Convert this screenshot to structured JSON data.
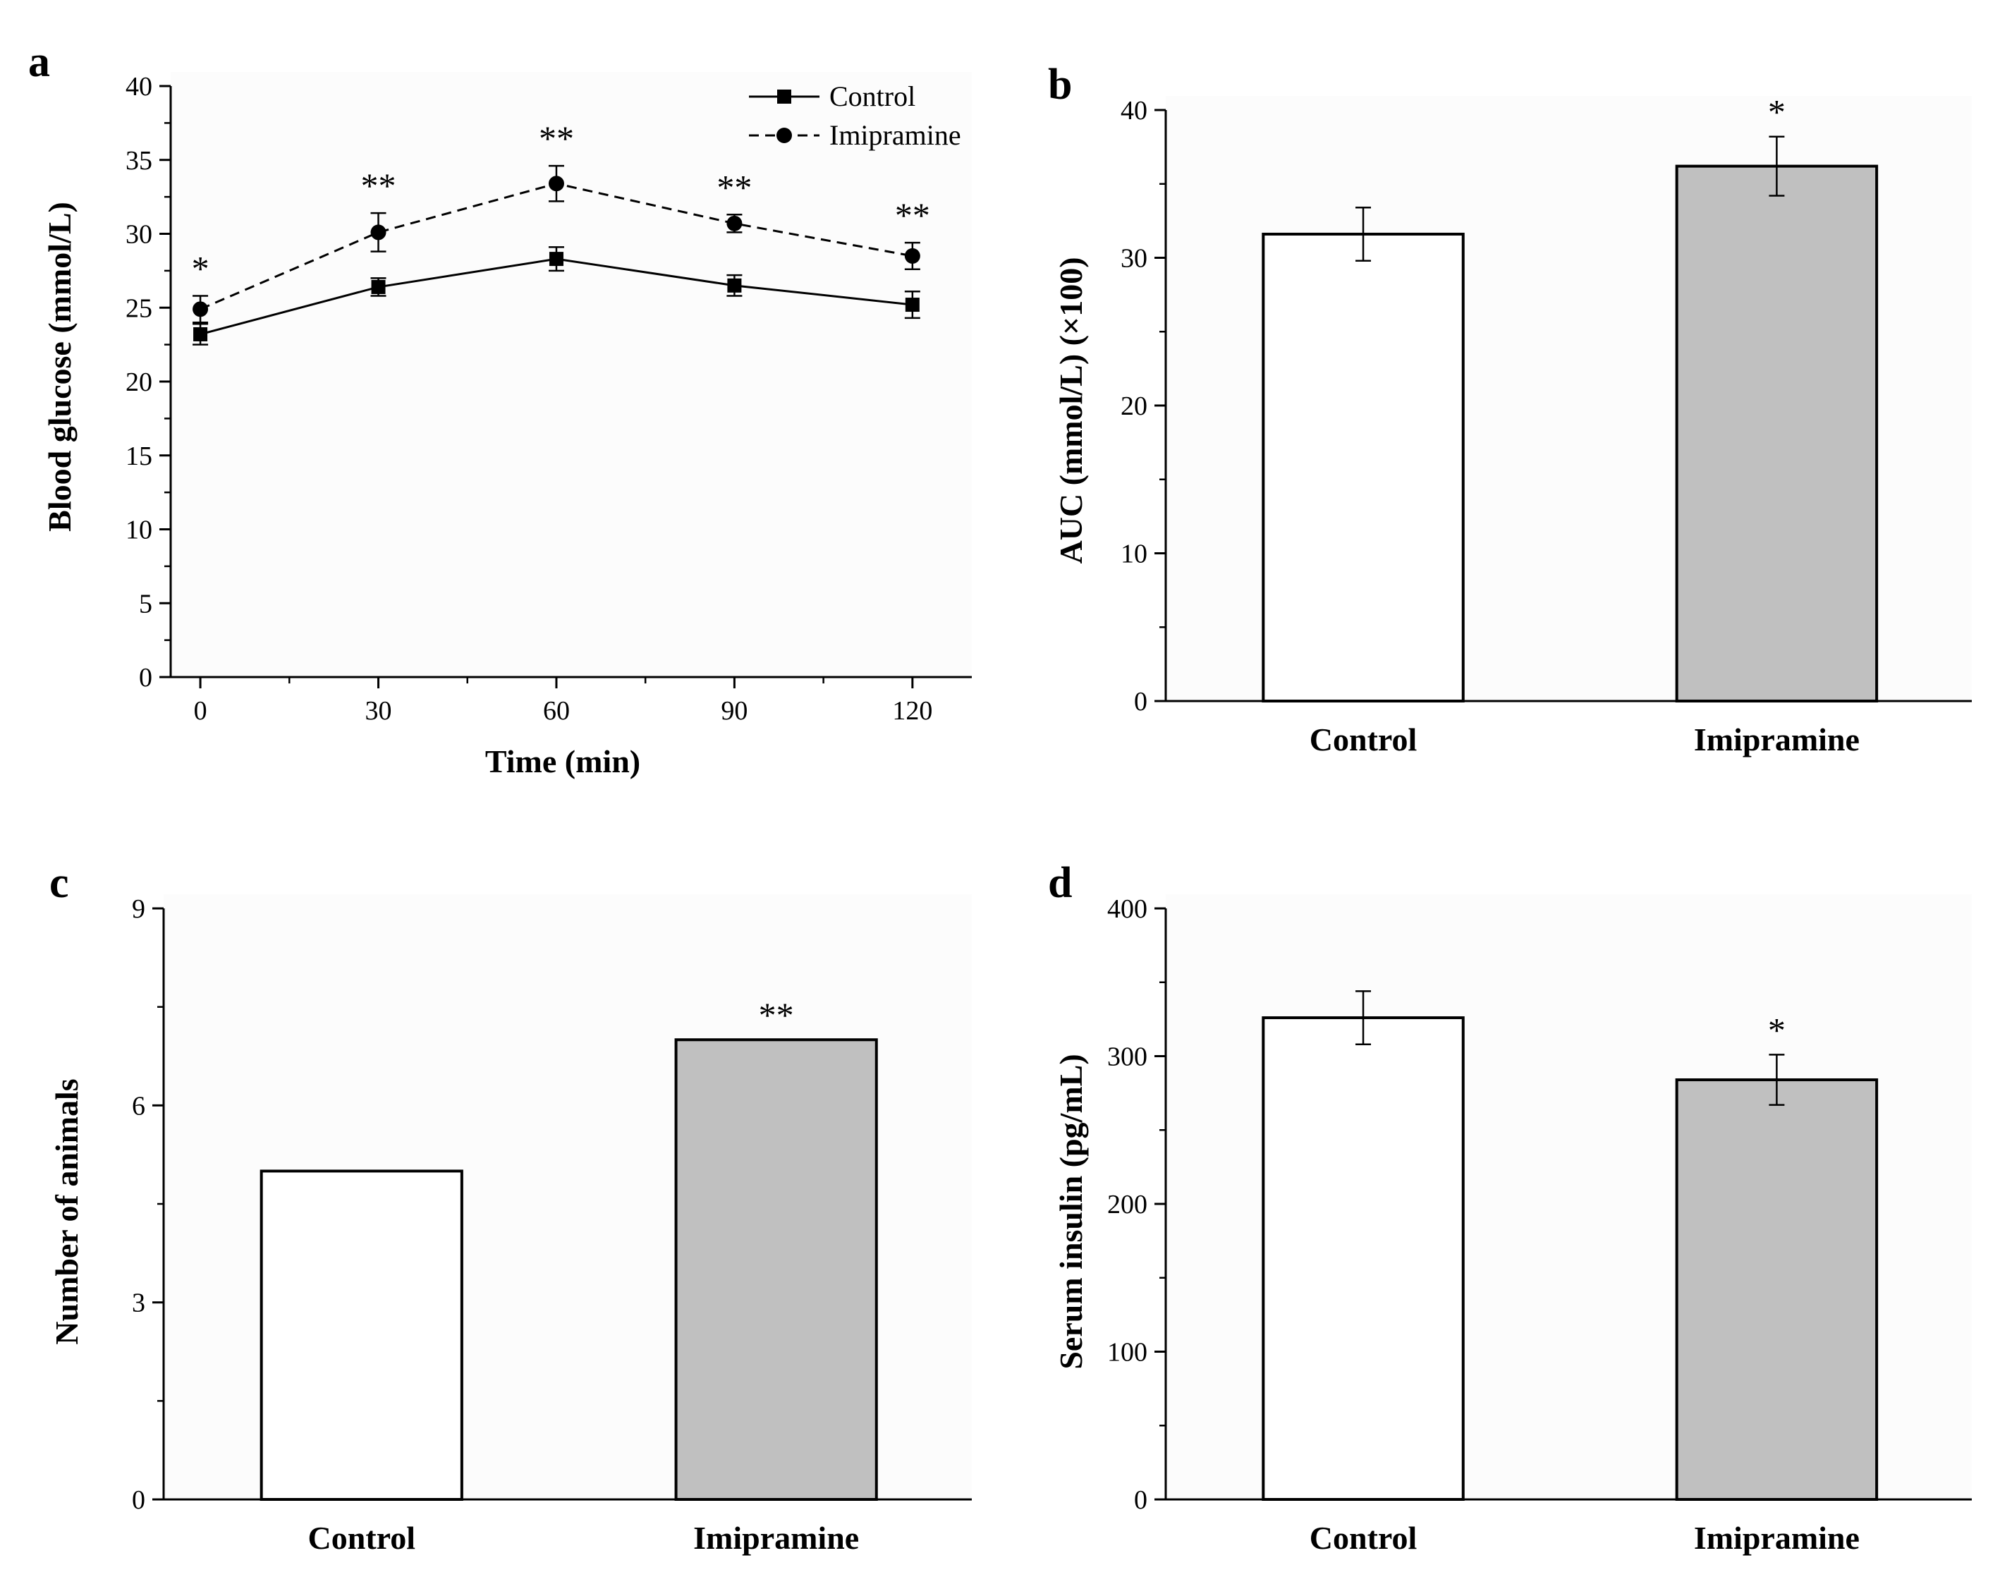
{
  "colors": {
    "plot_bg": "#fcfcfc",
    "control_bar": "#ffffff",
    "imipramine_bar": "#c0c0c0",
    "line": "#000000"
  },
  "chart_data": [
    {
      "panel": "a",
      "type": "line",
      "xlabel": "Time (min)",
      "ylabel": "Blood glucose (mmol/L)",
      "x": [
        0,
        30,
        60,
        90,
        120
      ],
      "xticks": [
        0,
        30,
        60,
        90,
        120
      ],
      "xlim": [
        -5,
        130
      ],
      "ylim": [
        0,
        40
      ],
      "yticks": [
        0,
        5,
        10,
        15,
        20,
        25,
        30,
        35,
        40
      ],
      "legend_position": "top-right",
      "series": [
        {
          "name": "Control",
          "values": [
            23.2,
            26.4,
            28.3,
            26.5,
            25.2
          ],
          "errors": [
            0.7,
            0.6,
            0.8,
            0.7,
            0.9
          ],
          "marker": "square",
          "dash": "solid"
        },
        {
          "name": "Imipramine",
          "values": [
            24.9,
            30.1,
            33.4,
            30.7,
            28.5
          ],
          "errors": [
            0.9,
            1.3,
            1.2,
            0.6,
            0.9
          ],
          "marker": "circle",
          "dash": "dashed"
        }
      ],
      "significance": [
        "*",
        "**",
        "**",
        "**",
        "**"
      ]
    },
    {
      "panel": "b",
      "type": "bar",
      "ylabel": "AUC (mmol/L) (×100)",
      "categories": [
        "Control",
        "Imipramine"
      ],
      "values": [
        31.6,
        36.2
      ],
      "errors": [
        1.8,
        2.0
      ],
      "ylim": [
        0,
        40
      ],
      "yticks": [
        0,
        10,
        20,
        30,
        40
      ],
      "significance": [
        "",
        "*"
      ]
    },
    {
      "panel": "c",
      "type": "bar",
      "ylabel": "Number of animals",
      "categories": [
        "Control",
        "Imipramine"
      ],
      "values": [
        5,
        7
      ],
      "errors": [
        0,
        0
      ],
      "ylim": [
        0,
        9
      ],
      "yticks": [
        0,
        3,
        6,
        9
      ],
      "significance": [
        "",
        "**"
      ]
    },
    {
      "panel": "d",
      "type": "bar",
      "ylabel": "Serum insulin (pg/mL)",
      "categories": [
        "Control",
        "Imipramine"
      ],
      "values": [
        326,
        284
      ],
      "errors": [
        18,
        17
      ],
      "ylim": [
        0,
        400
      ],
      "yticks": [
        0,
        100,
        200,
        300,
        400
      ],
      "significance": [
        "",
        "*"
      ]
    }
  ]
}
